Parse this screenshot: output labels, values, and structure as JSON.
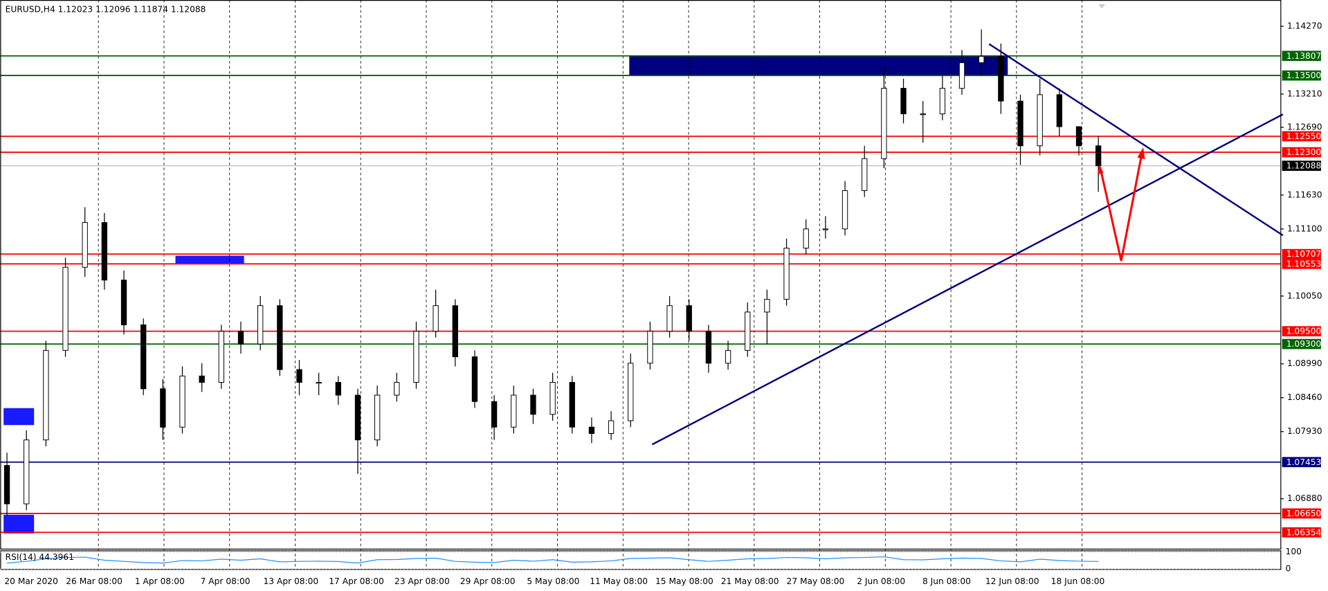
{
  "chart_data": {
    "type": "candlestick",
    "symbol": "EURUSD,H4",
    "ohlc": [
      1.12023,
      1.12096,
      1.11874,
      1.12088
    ],
    "categories": [
      "20 Mar 2020",
      "26 Mar 08:00",
      "1 Apr 08:00",
      "7 Apr 08:00",
      "13 Apr 08:00",
      "17 Apr 08:00",
      "23 Apr 08:00",
      "29 Apr 08:00",
      "5 May 08:00",
      "11 May 08:00",
      "15 May 08:00",
      "21 May 08:00",
      "27 May 08:00",
      "2 Jun 08:00",
      "8 Jun 08:00",
      "12 Jun 08:00",
      "18 Jun 08:00"
    ],
    "candles": {
      "open": [
        1.074,
        1.068,
        1.078,
        1.092,
        1.105,
        1.112,
        1.103,
        1.096,
        1.086,
        1.08,
        1.088,
        1.087,
        1.095,
        1.093,
        1.099,
        1.089,
        1.087,
        1.087,
        1.085,
        1.078,
        1.085,
        1.087,
        1.095,
        1.099,
        1.091,
        1.084,
        1.08,
        1.085,
        1.082,
        1.087,
        1.08,
        1.079,
        1.081,
        1.09,
        1.095,
        1.099,
        1.095,
        1.09,
        1.092,
        1.098,
        1.1,
        1.108,
        1.111,
        1.111,
        1.117,
        1.122,
        1.133,
        1.129,
        1.129,
        1.133,
        1.137,
        1.138,
        1.131,
        1.124,
        1.132,
        1.127,
        1.124
      ],
      "high": [
        1.076,
        1.0795,
        1.0935,
        1.1065,
        1.1144,
        1.1135,
        1.1045,
        1.097,
        1.0875,
        1.0895,
        1.09,
        1.096,
        1.0965,
        1.1005,
        1.1,
        1.0905,
        1.0885,
        1.088,
        1.086,
        1.0865,
        1.0885,
        1.0965,
        1.1015,
        1.1,
        1.092,
        1.085,
        1.0865,
        1.086,
        1.0885,
        1.088,
        1.0815,
        1.0825,
        1.0915,
        1.0965,
        1.1005,
        1.1,
        1.096,
        1.0935,
        1.0995,
        1.1015,
        1.1095,
        1.1125,
        1.113,
        1.1185,
        1.124,
        1.1365,
        1.1345,
        1.131,
        1.135,
        1.139,
        1.1422,
        1.14,
        1.132,
        1.1345,
        1.133,
        1.1262,
        1.1255
      ],
      "low": [
        1.0662,
        1.067,
        1.077,
        1.091,
        1.1035,
        1.1015,
        1.0945,
        1.085,
        1.078,
        1.079,
        1.0855,
        1.086,
        1.0915,
        1.092,
        1.088,
        1.085,
        1.085,
        1.0835,
        1.0727,
        1.077,
        1.084,
        1.086,
        1.094,
        1.0895,
        1.083,
        1.078,
        1.079,
        1.0805,
        1.081,
        1.079,
        1.0775,
        1.078,
        1.08,
        1.089,
        1.094,
        1.0935,
        1.0885,
        1.089,
        1.091,
        1.093,
        1.099,
        1.107,
        1.1095,
        1.11,
        1.116,
        1.1205,
        1.1275,
        1.1245,
        1.128,
        1.132,
        1.135,
        1.129,
        1.121,
        1.1225,
        1.1255,
        1.1225,
        1.1168
      ],
      "close": [
        1.068,
        1.078,
        1.092,
        1.105,
        1.112,
        1.103,
        1.096,
        1.086,
        1.08,
        1.088,
        1.087,
        1.095,
        1.093,
        1.099,
        1.089,
        1.087,
        1.087,
        1.085,
        1.078,
        1.085,
        1.087,
        1.095,
        1.099,
        1.091,
        1.084,
        1.08,
        1.085,
        1.082,
        1.087,
        1.08,
        1.079,
        1.081,
        1.09,
        1.095,
        1.099,
        1.095,
        1.09,
        1.092,
        1.098,
        1.1,
        1.108,
        1.111,
        1.111,
        1.117,
        1.122,
        1.133,
        1.129,
        1.129,
        1.133,
        1.137,
        1.138,
        1.131,
        1.124,
        1.132,
        1.127,
        1.124,
        1.12088
      ]
    },
    "ylim": [
      1.06099,
      1.14681
    ],
    "yticks": [
      {
        "value": 1.1427,
        "label": "1.14270"
      },
      {
        "value": 1.1321,
        "label": "1.13210"
      },
      {
        "value": 1.1269,
        "label": "1.12690"
      },
      {
        "value": 1.1163,
        "label": "1.11630"
      },
      {
        "value": 1.111,
        "label": "1.11100"
      },
      {
        "value": 1.1005,
        "label": "1.10050"
      },
      {
        "value": 1.0899,
        "label": "1.08990"
      },
      {
        "value": 1.0846,
        "label": "1.08460"
      },
      {
        "value": 1.0793,
        "label": "1.07930"
      },
      {
        "value": 1.0688,
        "label": "1.06880"
      }
    ],
    "grid": "vertical",
    "levels": [
      {
        "value": 1.13807,
        "label": "1.13807",
        "color": "#006400"
      },
      {
        "value": 1.135,
        "label": "1.13500",
        "color": "#006400"
      },
      {
        "value": 1.1255,
        "label": "1.12550",
        "color": "#ff0000"
      },
      {
        "value": 1.123,
        "label": "1.12300",
        "color": "#ff0000"
      },
      {
        "value": 1.10707,
        "label": "1.10707",
        "color": "#ff0000"
      },
      {
        "value": 1.10553,
        "label": "1.10553",
        "color": "#ff0000"
      },
      {
        "value": 1.095,
        "label": "1.09500",
        "color": "#ff0000"
      },
      {
        "value": 1.093,
        "label": "1.09300",
        "color": "#006400"
      },
      {
        "value": 1.07453,
        "label": "1.07453",
        "color": "#000080"
      },
      {
        "value": 1.0665,
        "label": "1.06650",
        "color": "#ff0000"
      },
      {
        "value": 1.06354,
        "label": "1.06354",
        "color": "#ff0000"
      }
    ],
    "current_price": 1.12088,
    "indicator": {
      "name": "RSI(14)",
      "color": "#1e90ff",
      "ylim": [
        0,
        100
      ],
      "yticks": [
        100,
        0
      ],
      "values": [
        35,
        45,
        60,
        68,
        70,
        52,
        45,
        38,
        35,
        50,
        48,
        58,
        52,
        60,
        42,
        45,
        46,
        44,
        35,
        55,
        56,
        62,
        64,
        45,
        40,
        38,
        52,
        46,
        55,
        40,
        42,
        48,
        62,
        64,
        66,
        55,
        45,
        52,
        60,
        62,
        68,
        66,
        60,
        66,
        68,
        72,
        55,
        54,
        60,
        64,
        62,
        48,
        42,
        58,
        50,
        46,
        44.3961
      ]
    }
  }
}
